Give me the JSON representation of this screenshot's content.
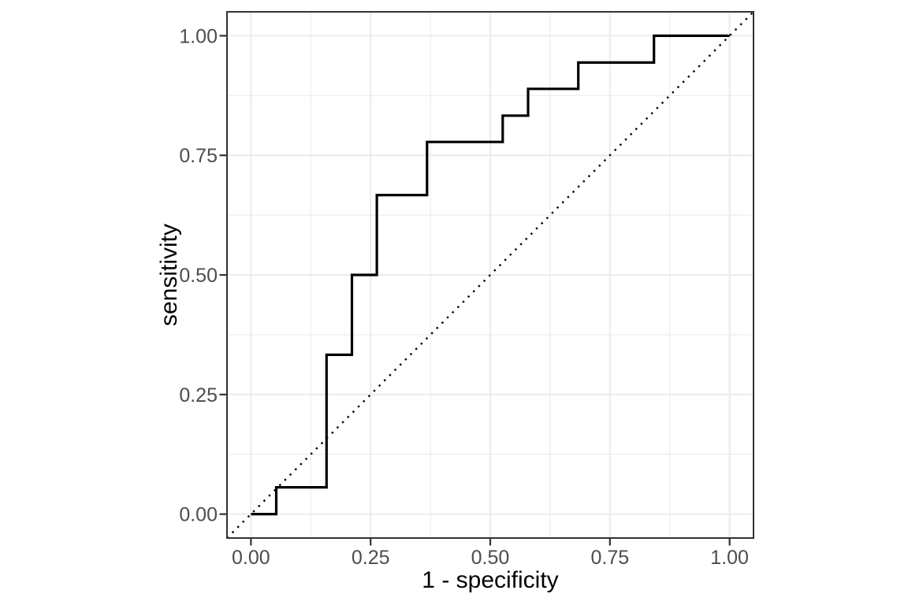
{
  "figure": {
    "background": "#ffffff",
    "panel_background": "#ffffff",
    "panel_border_color": "#333333",
    "grid_major_color": "#ebebeb",
    "grid_minor_color": "#ebebeb",
    "tick_mark_color": "#333333",
    "tick_label_color": "#4d4d4d",
    "axis_title_color": "#000000",
    "curve_color": "#000000",
    "diagonal_color": "#000000"
  },
  "chart_data": {
    "type": "line",
    "subtype": "roc-step-curve",
    "title": "",
    "xlabel": "1 - specificity",
    "ylabel": "sensitivity",
    "xlim": [
      -0.05,
      1.05
    ],
    "ylim": [
      -0.05,
      1.05
    ],
    "grid": true,
    "legend": false,
    "x_ticks": [
      0,
      0.25,
      0.5,
      0.75,
      1
    ],
    "x_tick_labels": [
      "0.00",
      "0.25",
      "0.50",
      "0.75",
      "1.00"
    ],
    "y_ticks": [
      0,
      0.25,
      0.5,
      0.75,
      1
    ],
    "y_tick_labels": [
      "0.00",
      "0.25",
      "0.50",
      "0.75",
      "1.00"
    ],
    "x_minor_ticks": [
      0.125,
      0.375,
      0.625,
      0.875
    ],
    "y_minor_ticks": [
      0.125,
      0.375,
      0.625,
      0.875
    ],
    "series": [
      {
        "name": "roc_curve",
        "style": "solid-step",
        "points": [
          [
            0.0,
            0.0
          ],
          [
            0.053,
            0.0
          ],
          [
            0.053,
            0.056
          ],
          [
            0.158,
            0.056
          ],
          [
            0.158,
            0.333
          ],
          [
            0.211,
            0.333
          ],
          [
            0.211,
            0.5
          ],
          [
            0.263,
            0.5
          ],
          [
            0.263,
            0.667
          ],
          [
            0.368,
            0.667
          ],
          [
            0.368,
            0.778
          ],
          [
            0.526,
            0.778
          ],
          [
            0.526,
            0.833
          ],
          [
            0.579,
            0.833
          ],
          [
            0.579,
            0.889
          ],
          [
            0.684,
            0.889
          ],
          [
            0.684,
            0.944
          ],
          [
            0.842,
            0.944
          ],
          [
            0.842,
            1.0
          ],
          [
            1.0,
            1.0
          ]
        ]
      },
      {
        "name": "chance_diagonal",
        "style": "dotted",
        "points": [
          [
            -0.05,
            -0.05
          ],
          [
            1.05,
            1.05
          ]
        ]
      }
    ]
  }
}
